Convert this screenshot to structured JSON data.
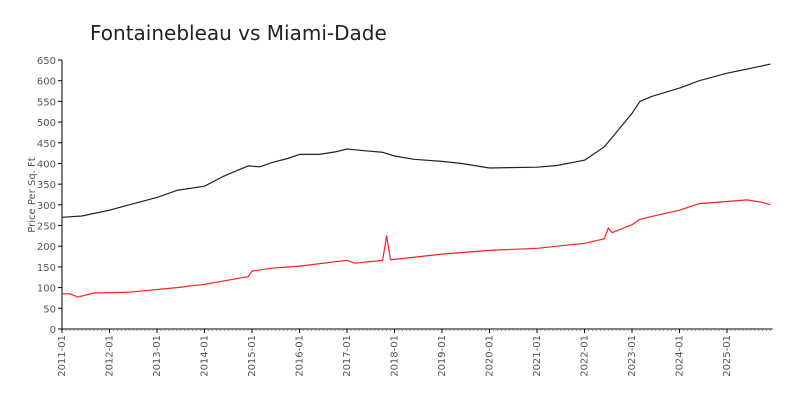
{
  "chart_data": {
    "type": "line",
    "title": "Fontainebleau vs Miami-Dade",
    "xlabel": "",
    "ylabel": "Price Per Sq. Ft",
    "ylim": [
      0,
      650
    ],
    "xlim": [
      "2011-01",
      "2025-12"
    ],
    "yticks": [
      "0",
      "50",
      "100",
      "150",
      "200",
      "250",
      "300",
      "350",
      "400",
      "450",
      "500",
      "550",
      "600",
      "650"
    ],
    "xticks": [
      "2011-01",
      "2012-01",
      "2013-01",
      "2014-01",
      "2015-01",
      "2016-01",
      "2017-01",
      "2018-01",
      "2019-01",
      "2020-01",
      "2021-01",
      "2022-01",
      "2023-01",
      "2024-01",
      "2025-01"
    ],
    "grid": false,
    "legend": "none",
    "series": [
      {
        "color": "#222222",
        "points": [
          [
            "2011-01",
            270
          ],
          [
            "2011-06",
            273
          ],
          [
            "2012-01",
            287
          ],
          [
            "2012-06",
            300
          ],
          [
            "2013-01",
            318
          ],
          [
            "2013-06",
            335
          ],
          [
            "2014-01",
            345
          ],
          [
            "2014-06",
            370
          ],
          [
            "2014-12",
            394
          ],
          [
            "2015-03",
            392
          ],
          [
            "2015-06",
            402
          ],
          [
            "2015-10",
            412
          ],
          [
            "2016-01",
            422
          ],
          [
            "2016-06",
            422
          ],
          [
            "2016-10",
            428
          ],
          [
            "2017-01",
            435
          ],
          [
            "2017-04",
            432
          ],
          [
            "2017-10",
            427
          ],
          [
            "2018-01",
            418
          ],
          [
            "2018-06",
            410
          ],
          [
            "2019-01",
            405
          ],
          [
            "2019-06",
            400
          ],
          [
            "2020-01",
            389
          ],
          [
            "2020-06",
            390
          ],
          [
            "2021-01",
            391
          ],
          [
            "2021-06",
            395
          ],
          [
            "2022-01",
            408
          ],
          [
            "2022-06",
            440
          ],
          [
            "2023-01",
            521
          ],
          [
            "2023-03",
            550
          ],
          [
            "2023-06",
            562
          ],
          [
            "2024-01",
            582
          ],
          [
            "2024-06",
            600
          ],
          [
            "2025-01",
            618
          ],
          [
            "2025-06",
            628
          ],
          [
            "2025-12",
            640
          ]
        ]
      },
      {
        "color": "#ff2020",
        "points": [
          [
            "2011-01",
            85
          ],
          [
            "2011-03",
            85
          ],
          [
            "2011-05",
            77
          ],
          [
            "2011-09",
            87
          ],
          [
            "2012-06",
            89
          ],
          [
            "2013-06",
            100
          ],
          [
            "2014-01",
            108
          ],
          [
            "2014-11",
            125
          ],
          [
            "2014-12",
            126
          ],
          [
            "2015-01",
            140
          ],
          [
            "2015-06",
            147
          ],
          [
            "2016-01",
            152
          ],
          [
            "2017-01",
            166
          ],
          [
            "2017-03",
            159
          ],
          [
            "2017-10",
            166
          ],
          [
            "2017-11",
            225
          ],
          [
            "2017-12",
            167
          ],
          [
            "2019-01",
            181
          ],
          [
            "2020-01",
            190
          ],
          [
            "2021-01",
            195
          ],
          [
            "2022-01",
            207
          ],
          [
            "2022-06",
            218
          ],
          [
            "2022-07",
            244
          ],
          [
            "2022-08",
            233
          ],
          [
            "2023-01",
            252
          ],
          [
            "2023-03",
            265
          ],
          [
            "2023-06",
            272
          ],
          [
            "2024-01",
            287
          ],
          [
            "2024-06",
            303
          ],
          [
            "2025-01",
            308
          ],
          [
            "2025-06",
            312
          ],
          [
            "2025-10",
            306
          ],
          [
            "2025-12",
            300
          ]
        ]
      }
    ]
  }
}
